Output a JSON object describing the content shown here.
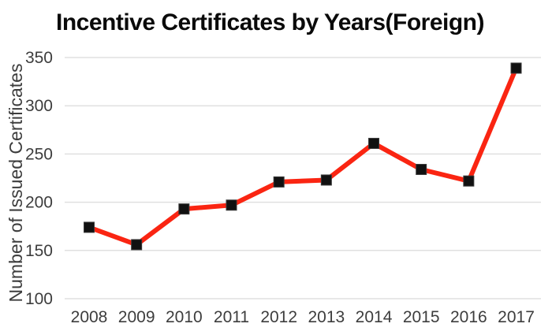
{
  "page": {
    "background": "#ffffff"
  },
  "chart_data": {
    "type": "line",
    "title": "Incentive Certificates by Years(Foreign)",
    "xlabel": "",
    "ylabel": "Number of Issued Certificates",
    "categories": [
      "2008",
      "2009",
      "2010",
      "2011",
      "2012",
      "2013",
      "2014",
      "2015",
      "2016",
      "2017"
    ],
    "series": [
      {
        "name": "Issued Certificates",
        "values": [
          174,
          156,
          193,
          197,
          221,
          223,
          261,
          234,
          222,
          339
        ]
      }
    ],
    "ylim": [
      100,
      350
    ],
    "yticks": [
      100,
      150,
      200,
      250,
      300,
      350
    ],
    "grid": "horizontal-only",
    "legend_position": "none",
    "line_color": "#fa2512",
    "line_width": 6,
    "marker": "square",
    "marker_color": "#111111",
    "marker_edge_color": "#3a3a3a",
    "grid_color": "#e0e0e0",
    "axis_text_color": "#3d3d3d",
    "title_color": "#0a0a0a",
    "background": "#ffffff"
  }
}
